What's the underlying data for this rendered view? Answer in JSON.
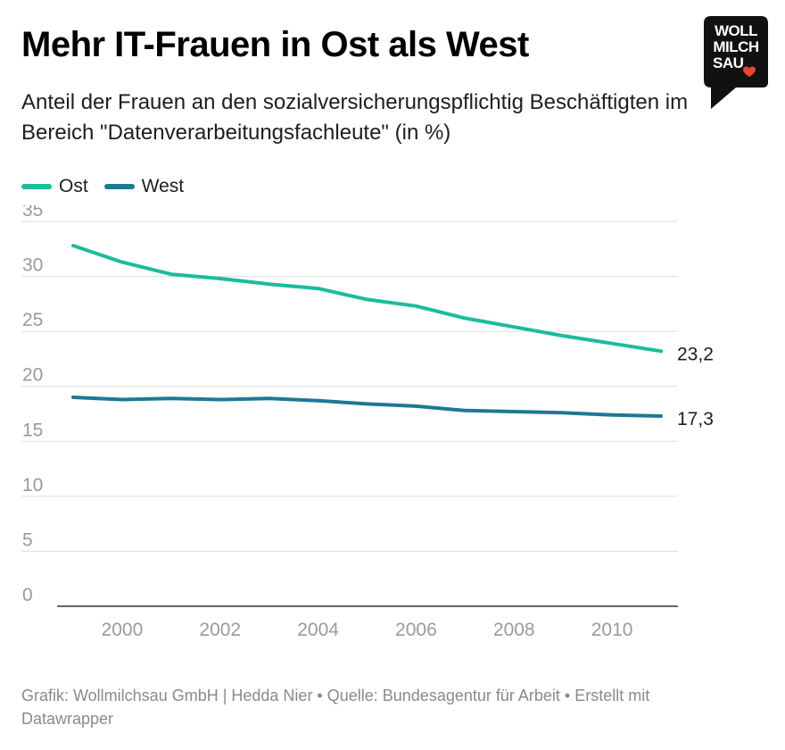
{
  "header": {
    "title": "Mehr IT-Frauen in Ost als West",
    "subtitle": "Anteil der Frauen an den sozialversicherungspflichtig Beschäftigten im Bereich \"Datenverarbeitungsfachleute\" (in %)"
  },
  "logo": {
    "line1": "WOLL",
    "line2": "MILCH",
    "line3": "SAU",
    "icon": "heart-icon",
    "colors": {
      "background": "#111111",
      "heart": "#e8452c"
    }
  },
  "footer": {
    "text": "Grafik: Wollmilchsau GmbH | Hedda Nier • Quelle: Bundesagentur für Arbeit • Erstellt mit Datawrapper"
  },
  "chart_data": {
    "type": "line",
    "title": "Mehr IT-Frauen in Ost als West",
    "subtitle": "Anteil der Frauen an den sozialversicherungspflichtig Beschäftigten im Bereich \"Datenverarbeitungsfachleute\" (in %)",
    "xlabel": "",
    "ylabel": "",
    "xlim": [
      1999,
      2011
    ],
    "ylim": [
      0,
      35
    ],
    "yticks": [
      0,
      5,
      10,
      15,
      20,
      25,
      30,
      35
    ],
    "xticks": [
      2000,
      2002,
      2004,
      2006,
      2008,
      2010
    ],
    "grid": "horizontal",
    "legend_position": "top-left",
    "x": [
      1999,
      2000,
      2001,
      2002,
      2003,
      2004,
      2005,
      2006,
      2007,
      2008,
      2009,
      2010,
      2011
    ],
    "series": [
      {
        "name": "Ost",
        "color": "#1abc9c",
        "values": [
          32.8,
          31.3,
          30.2,
          29.8,
          29.3,
          28.9,
          27.9,
          27.3,
          26.2,
          25.4,
          24.6,
          23.9,
          23.2
        ],
        "end_label": "23,2"
      },
      {
        "name": "West",
        "color": "#1f7894",
        "values": [
          19.0,
          18.8,
          18.9,
          18.8,
          18.9,
          18.7,
          18.4,
          18.2,
          17.8,
          17.7,
          17.6,
          17.4,
          17.3
        ],
        "end_label": "17,3"
      }
    ]
  }
}
